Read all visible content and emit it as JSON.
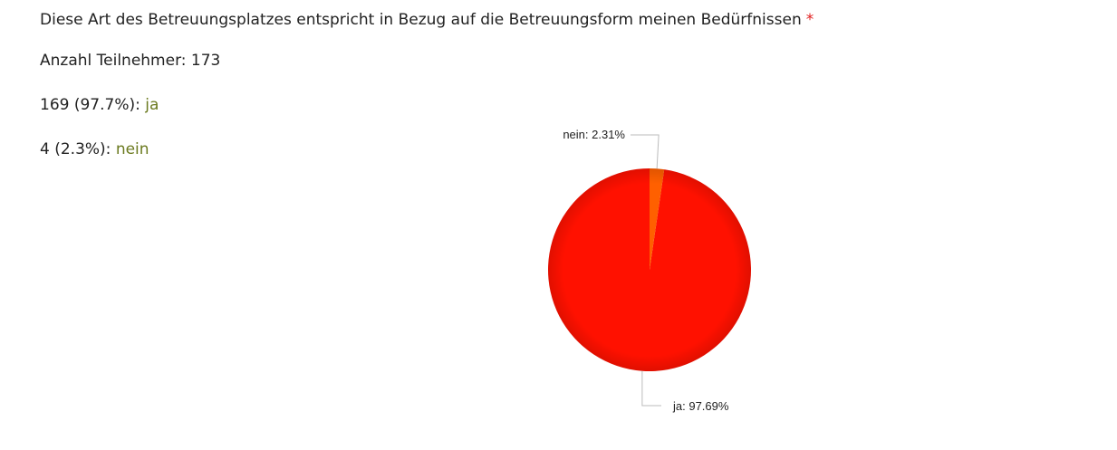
{
  "question": {
    "text": "Diese Art des Betreuungsplatzes entspricht in Bezug auf die Betreuungsform meinen Bedürfnissen",
    "required_marker": "*"
  },
  "participants": {
    "label": "Anzahl Teilnehmer:",
    "count": "173"
  },
  "results": [
    {
      "count_pct": "169 (97.7%):",
      "answer": "ja"
    },
    {
      "count_pct": "4 (2.3%):",
      "answer": "nein"
    }
  ],
  "colors": {
    "ja": "#ff1100",
    "nein": "#ff6000",
    "answer_text": "#6b7a1f",
    "required": "#e11d1d"
  },
  "chart_data": {
    "type": "pie",
    "categories": [
      "ja",
      "nein"
    ],
    "values": [
      97.69,
      2.31
    ],
    "slice_labels": [
      "ja: 97.69%",
      "nein: 2.31%"
    ],
    "start": "top",
    "direction": "counterclockwise",
    "legend": "none"
  }
}
